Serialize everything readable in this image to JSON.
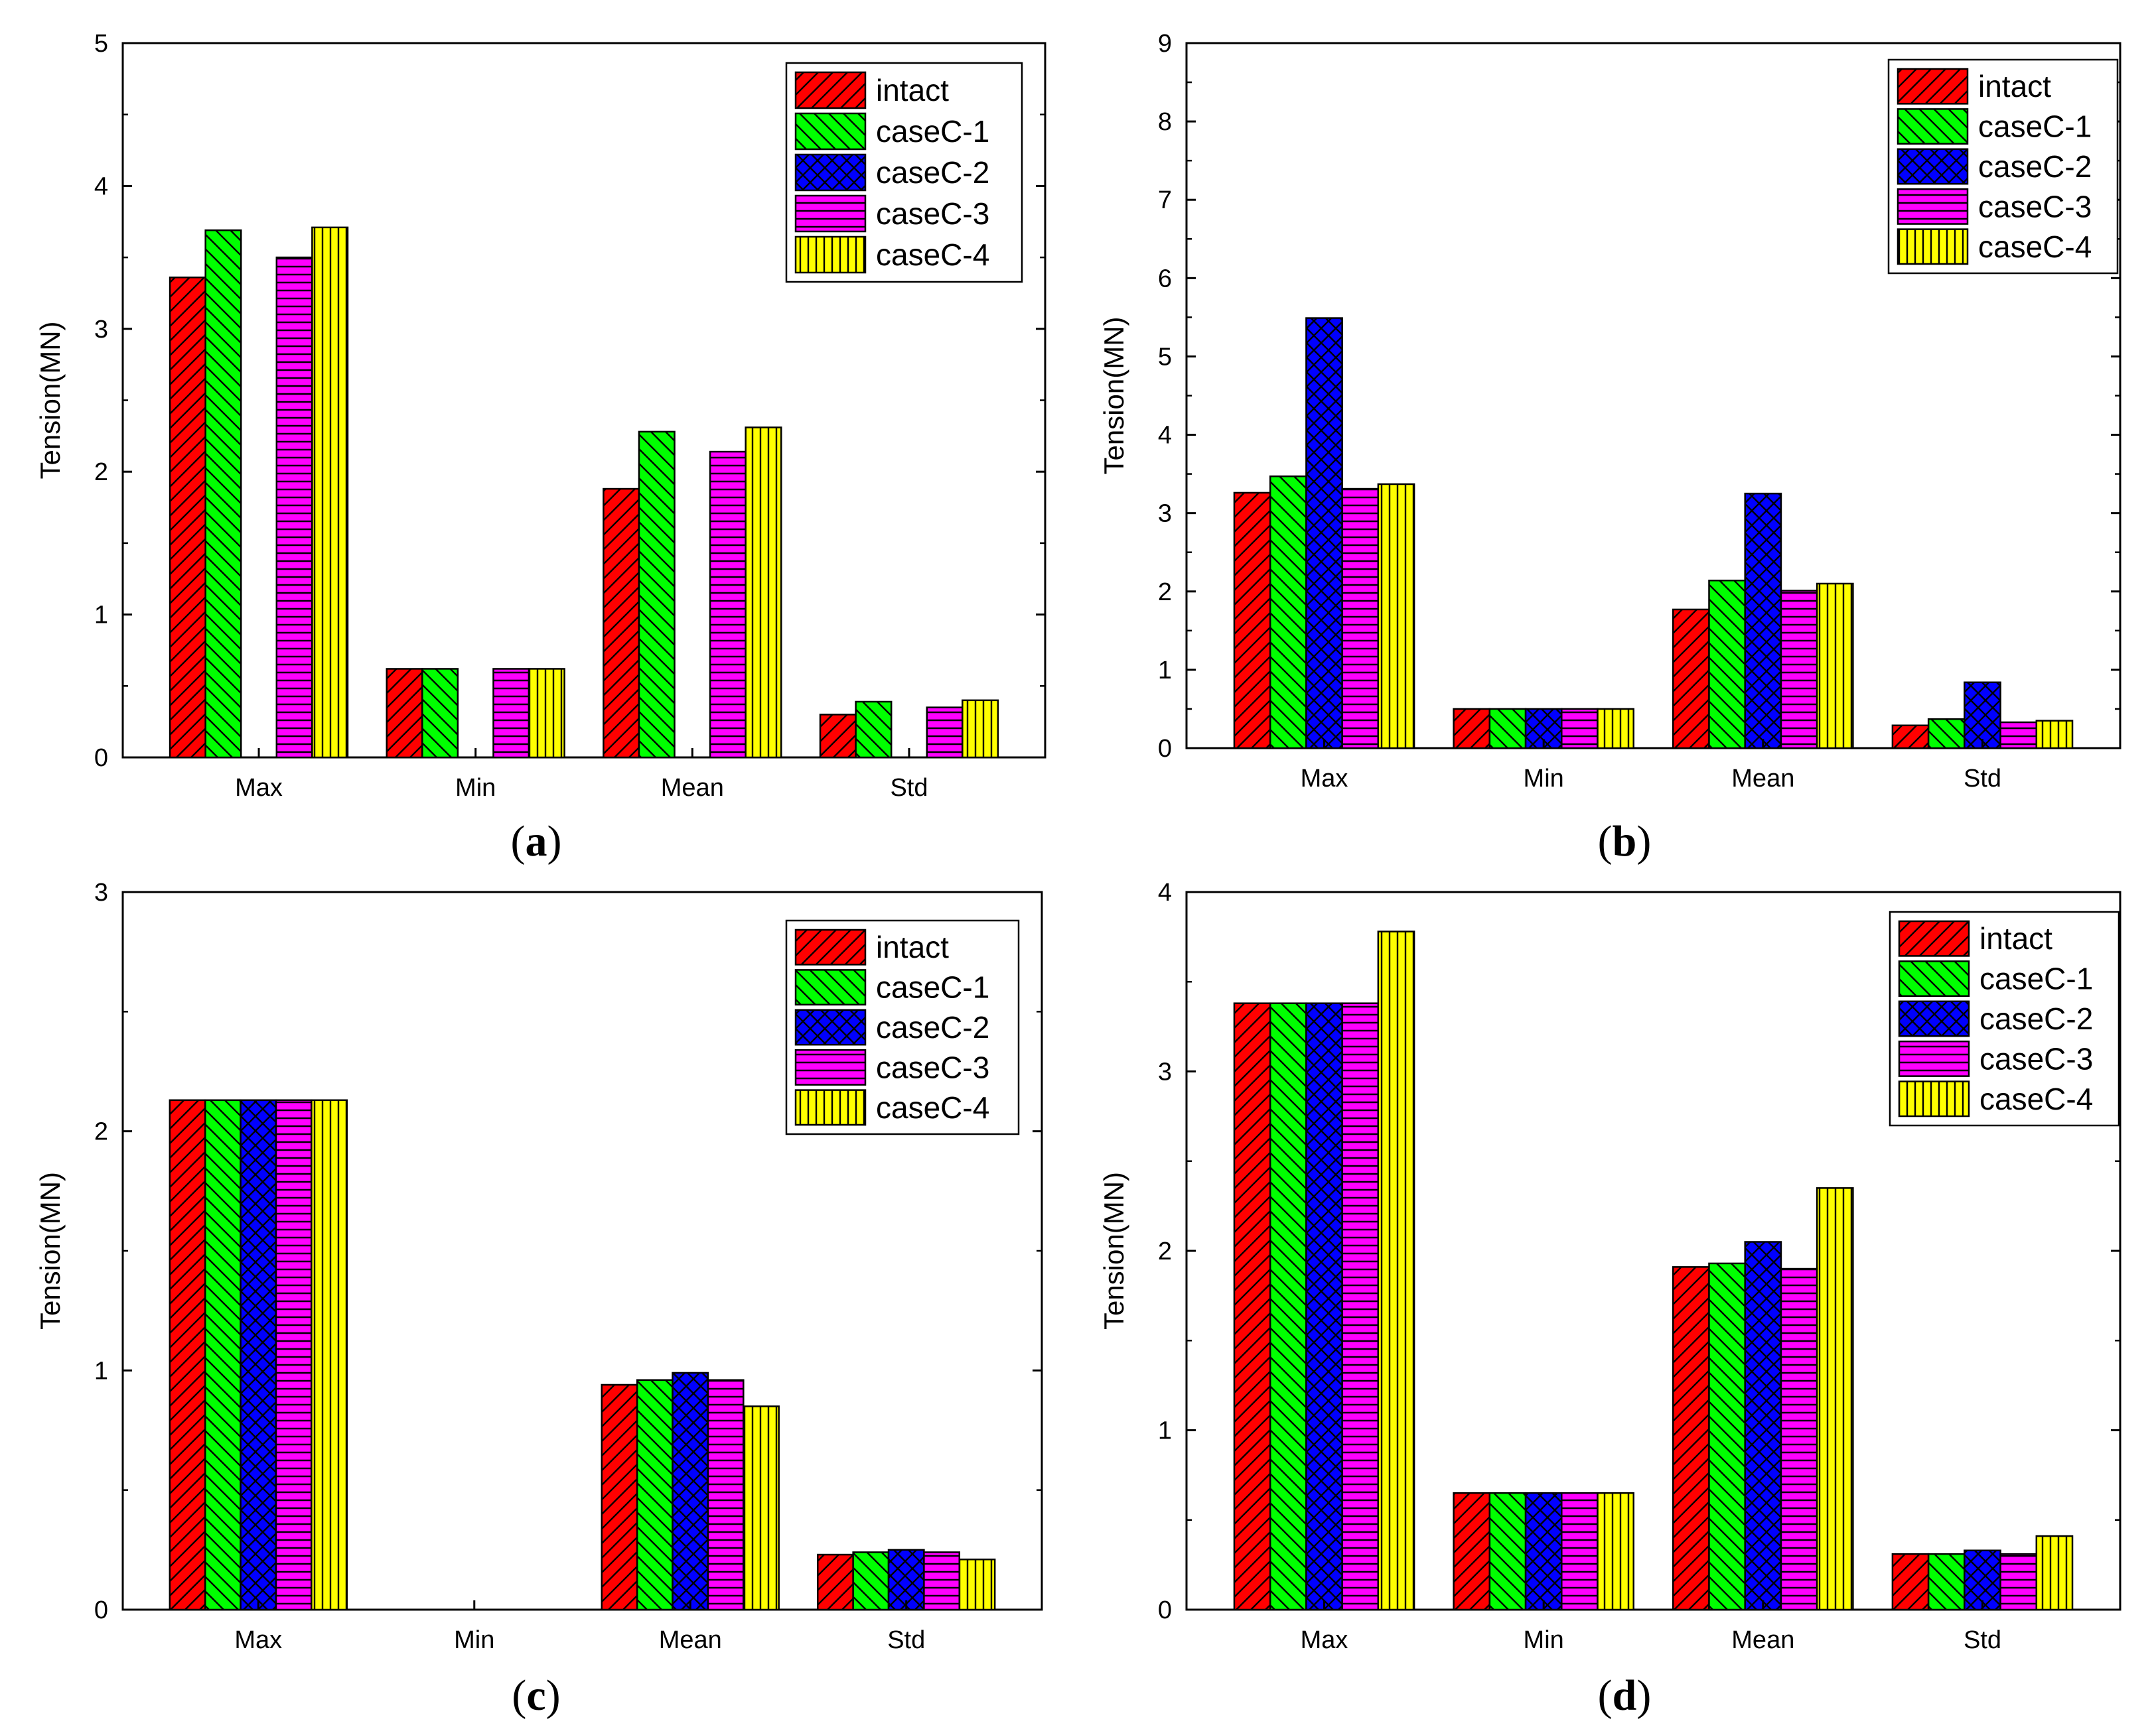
{
  "figure": {
    "panel_label_template": [
      "(",
      ")"
    ]
  },
  "colors": {
    "intact": "#ff0000",
    "caseC-1": "#00ff00",
    "caseC-2": "#0000ff",
    "caseC-3": "#ff00ff",
    "caseC-4": "#ffff00"
  },
  "chart_data": [
    {
      "type": "bar",
      "panel": "a",
      "title": "",
      "xlabel": "",
      "ylabel": "Tension(MN)",
      "ylim": [
        0,
        5
      ],
      "yticks": [
        "0",
        "1",
        "2",
        "3",
        "4",
        "5"
      ],
      "categories": [
        "Max",
        "Min",
        "Mean",
        "Std"
      ],
      "legend_position": "top-right",
      "series": [
        {
          "name": "intact",
          "pattern": "diag-back",
          "values": [
            3.36,
            0.62,
            1.88,
            0.3
          ]
        },
        {
          "name": "caseC-1",
          "pattern": "diag-fwd",
          "values": [
            3.69,
            0.62,
            2.28,
            0.39
          ]
        },
        {
          "name": "caseC-2",
          "pattern": "crosshatch",
          "values": [
            0,
            0,
            0,
            0
          ]
        },
        {
          "name": "caseC-3",
          "pattern": "horizontal",
          "values": [
            3.5,
            0.62,
            2.14,
            0.35
          ]
        },
        {
          "name": "caseC-4",
          "pattern": "vertical",
          "values": [
            3.71,
            0.62,
            2.31,
            0.4
          ]
        }
      ]
    },
    {
      "type": "bar",
      "panel": "b",
      "title": "",
      "xlabel": "",
      "ylabel": "Tension(MN)",
      "ylim": [
        0,
        9
      ],
      "yticks": [
        "0",
        "1",
        "2",
        "3",
        "4",
        "5",
        "6",
        "7",
        "8",
        "9"
      ],
      "categories": [
        "Max",
        "Min",
        "Mean",
        "Std"
      ],
      "legend_position": "top-right",
      "series": [
        {
          "name": "intact",
          "pattern": "diag-back",
          "values": [
            3.26,
            0.5,
            1.77,
            0.29
          ]
        },
        {
          "name": "caseC-1",
          "pattern": "diag-fwd",
          "values": [
            3.47,
            0.5,
            2.14,
            0.37
          ]
        },
        {
          "name": "caseC-2",
          "pattern": "crosshatch",
          "values": [
            5.49,
            0.5,
            3.25,
            0.84
          ]
        },
        {
          "name": "caseC-3",
          "pattern": "horizontal",
          "values": [
            3.31,
            0.5,
            2.01,
            0.33
          ]
        },
        {
          "name": "caseC-4",
          "pattern": "vertical",
          "values": [
            3.37,
            0.5,
            2.1,
            0.35
          ]
        }
      ]
    },
    {
      "type": "bar",
      "panel": "c",
      "title": "",
      "xlabel": "",
      "ylabel": "Tension(MN)",
      "ylim": [
        0,
        3
      ],
      "yticks": [
        "0",
        "1",
        "2",
        "3"
      ],
      "categories": [
        "Max",
        "Min",
        "Mean",
        "Std"
      ],
      "legend_position": "top-right",
      "series": [
        {
          "name": "intact",
          "pattern": "diag-back",
          "values": [
            2.13,
            0,
            0.94,
            0.23
          ]
        },
        {
          "name": "caseC-1",
          "pattern": "diag-fwd",
          "values": [
            2.13,
            0,
            0.96,
            0.24
          ]
        },
        {
          "name": "caseC-2",
          "pattern": "crosshatch",
          "values": [
            2.13,
            0,
            0.99,
            0.25
          ]
        },
        {
          "name": "caseC-3",
          "pattern": "horizontal",
          "values": [
            2.13,
            0,
            0.96,
            0.24
          ]
        },
        {
          "name": "caseC-4",
          "pattern": "vertical",
          "values": [
            2.13,
            0,
            0.85,
            0.21
          ]
        }
      ]
    },
    {
      "type": "bar",
      "panel": "d",
      "title": "",
      "xlabel": "",
      "ylabel": "Tension(MN)",
      "ylim": [
        0,
        4
      ],
      "yticks": [
        "0",
        "1",
        "2",
        "3",
        "4"
      ],
      "categories": [
        "Max",
        "Min",
        "Mean",
        "Std"
      ],
      "legend_position": "top-right",
      "series": [
        {
          "name": "intact",
          "pattern": "diag-back",
          "values": [
            3.38,
            0.65,
            1.91,
            0.31
          ]
        },
        {
          "name": "caseC-1",
          "pattern": "diag-fwd",
          "values": [
            3.38,
            0.65,
            1.93,
            0.31
          ]
        },
        {
          "name": "caseC-2",
          "pattern": "crosshatch",
          "values": [
            3.38,
            0.65,
            2.05,
            0.33
          ]
        },
        {
          "name": "caseC-3",
          "pattern": "horizontal",
          "values": [
            3.38,
            0.65,
            1.9,
            0.31
          ]
        },
        {
          "name": "caseC-4",
          "pattern": "vertical",
          "values": [
            3.78,
            0.65,
            2.35,
            0.41
          ]
        }
      ]
    }
  ]
}
